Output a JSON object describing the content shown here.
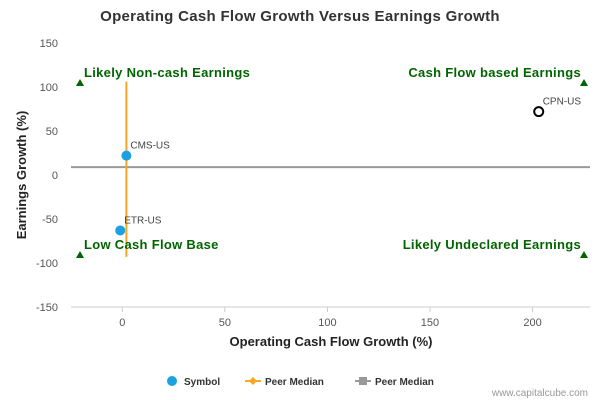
{
  "chart_data": {
    "type": "scatter",
    "title": "Operating Cash Flow Growth Versus Earnings Growth",
    "xlabel": "Operating Cash Flow Growth (%)",
    "ylabel": "Earnings Growth (%)",
    "xlim": [
      -25,
      228
    ],
    "ylim": [
      -150,
      150
    ],
    "xticks": [
      0,
      50,
      100,
      150,
      200
    ],
    "yticks": [
      150,
      100,
      50,
      0,
      -50,
      -100,
      -150
    ],
    "points": [
      {
        "label": "CMS-US",
        "x": 2,
        "y": 22,
        "style": "filled",
        "color": "#1ba1e2"
      },
      {
        "label": "ETR-US",
        "x": -1,
        "y": -63,
        "style": "filled",
        "color": "#1ba1e2"
      },
      {
        "label": "CPN-US",
        "x": 203,
        "y": 72,
        "style": "hollow",
        "color": "#000000"
      }
    ],
    "peer_median": {
      "x": 2,
      "x_range_y": [
        -93,
        106
      ],
      "y": 9,
      "x_color": "#f5a623",
      "y_color": "#999999"
    },
    "quadrants": [
      {
        "label": "Likely Non-cash Earnings",
        "position": "top-left"
      },
      {
        "label": "Cash Flow based Earnings",
        "position": "top-right"
      },
      {
        "label": "Low Cash Flow Base",
        "position": "bottom-left"
      },
      {
        "label": "Likely Undeclared Earnings",
        "position": "bottom-right"
      }
    ],
    "legend": [
      {
        "label": "Symbol",
        "marker": "circle",
        "color": "#1ba1e2"
      },
      {
        "label": "Peer Median",
        "marker": "diamond-line",
        "color": "#f5a623"
      },
      {
        "label": "Peer Median",
        "marker": "square-line",
        "color": "#999999"
      }
    ],
    "legend_position": "bottom",
    "quadrant_marker_color": "#006400",
    "credit": "www.capitalcube.com"
  }
}
